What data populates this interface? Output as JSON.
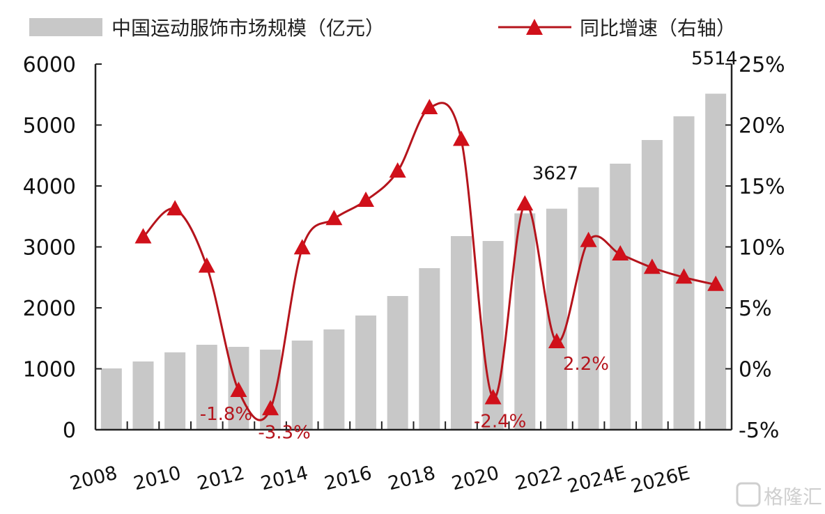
{
  "chart_data": {
    "type": "bar+line",
    "categories": [
      "2008",
      "2009",
      "2010",
      "2011",
      "2012",
      "2013",
      "2014",
      "2015",
      "2016",
      "2017",
      "2018",
      "2019",
      "2020",
      "2021",
      "2022",
      "2023",
      "2024E",
      "2025E",
      "2026E",
      "2027E"
    ],
    "x_tick_labels": [
      "2008",
      "2010",
      "2012",
      "2014",
      "2016",
      "2018",
      "2020",
      "2022",
      "2024E",
      "2026E"
    ],
    "series": [
      {
        "name": "中国运动服饰市场规模（亿元）",
        "type": "bar",
        "axis": "left",
        "values": [
          1006,
          1120,
          1270,
          1394,
          1360,
          1314,
          1463,
          1646,
          1874,
          2194,
          2651,
          3177,
          3097,
          3550,
          3627,
          3977,
          4366,
          4754,
          5143,
          5514
        ]
      },
      {
        "name": "同比增速（右轴）",
        "type": "line",
        "axis": "right",
        "unit": "%",
        "values": [
          null,
          10.8,
          13.1,
          8.4,
          -1.8,
          -3.3,
          9.9,
          12.3,
          13.8,
          16.2,
          21.4,
          18.8,
          -2.4,
          13.5,
          2.2,
          10.5,
          9.4,
          8.3,
          7.5,
          6.9
        ]
      }
    ],
    "y_left": {
      "range": [
        0,
        6000
      ],
      "ticks": [
        "0",
        "1000",
        "2000",
        "3000",
        "4000",
        "5000",
        "6000"
      ]
    },
    "y_right": {
      "range": [
        -5,
        25
      ],
      "ticks": [
        "-5%",
        "0%",
        "5%",
        "10%",
        "15%",
        "20%",
        "25%"
      ]
    },
    "annotations": [
      {
        "category": "2012",
        "text": "-1.8%"
      },
      {
        "category": "2013",
        "text": "-3.3%"
      },
      {
        "category": "2020",
        "text": "-2.4%"
      },
      {
        "category": "2022",
        "text": "2.2%"
      },
      {
        "category": "2022",
        "text": "3627",
        "series": "bar"
      },
      {
        "category": "2027E",
        "text": "5514",
        "series": "bar"
      }
    ],
    "legend": "top",
    "grid": false,
    "colors": {
      "bar": "#c8c8c8",
      "line": "#b5141c",
      "marker": "#d0101a",
      "annotation_pct": "#b5141c"
    }
  },
  "watermark": {
    "text": "格隆汇"
  }
}
